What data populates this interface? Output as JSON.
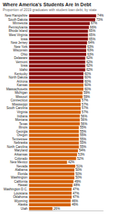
{
  "chart_data": {
    "type": "bar",
    "orientation": "horizontal",
    "title": "Where America's Students Are In Debt",
    "subtitle": "Proportion of 2019 graduates with student loan debt, by state",
    "categories": [
      "New Hampshire",
      "South Dakota",
      "Minnesota",
      "Pennsylvania",
      "Rhode Island",
      "West Virginia",
      "Iowa",
      "New Jersey",
      "New York",
      "Wisconsin",
      "Ohio",
      "Delaware",
      "Vermont",
      "Iowa",
      "Idaho",
      "Kentucky",
      "North Dakota",
      "Arizona",
      "Kansas",
      "Massachusetts",
      "Michigan",
      "Missouri",
      "Connecticut",
      "Mississippi",
      "South Carolina",
      "Virginia",
      "Indiana",
      "Montana",
      "Texas",
      "Illinois",
      "Georgia",
      "Oregon",
      "Tennessee",
      "Nebraska",
      "North Carolina",
      "Maryland",
      "Arkansas",
      "Colorado",
      "New Mexico",
      "Nevada",
      "Alabama",
      "Florida",
      "Washington",
      "California",
      "Hawaii",
      "Washington D.C.",
      "Louisiana",
      "Oklahoma",
      "Wyoming",
      "Alaska",
      "Utah"
    ],
    "values": [
      74,
      73,
      67,
      66,
      65,
      65,
      65,
      64,
      63,
      63,
      63,
      62,
      62,
      62,
      62,
      60,
      60,
      60,
      60,
      60,
      59,
      59,
      57,
      57,
      57,
      57,
      56,
      56,
      56,
      55,
      55,
      55,
      55,
      55,
      55,
      54,
      53,
      52,
      42,
      51,
      50,
      50,
      50,
      49,
      48,
      47,
      47,
      47,
      46,
      46,
      26
    ],
    "value_labels": [
      "74%",
      "73%",
      "67%",
      "66%",
      "65%",
      "65%",
      "65%",
      "64%",
      "63%",
      "63%",
      "63%",
      "62%",
      "62%",
      "62%",
      "62%",
      "60%",
      "60%",
      "60%",
      "60%",
      "60%",
      "59%",
      "59%",
      "57%",
      "57%",
      "57%",
      "57%",
      "56%",
      "56%",
      "56%",
      "55%",
      "55%",
      "55%",
      "55%",
      "55%",
      "55%",
      "54%",
      "53%",
      "52%",
      "42%",
      "51%",
      "50%",
      "50%",
      "50%",
      "49%",
      "48%",
      "47%",
      "47%",
      "47%",
      "46%",
      "46%",
      "26%"
    ],
    "colors": [
      "#8B1010",
      "#8B1010",
      "#8B1010",
      "#8B1010",
      "#8B1010",
      "#8B1010",
      "#8B1010",
      "#8B1010",
      "#8B1010",
      "#8B1010",
      "#8B1010",
      "#8B1010",
      "#8B1010",
      "#8B1010",
      "#8B1010",
      "#8B1010",
      "#8B1010",
      "#8B1010",
      "#D45E00",
      "#D45E00",
      "#D45E00",
      "#D45E00",
      "#D45E00",
      "#D45E00",
      "#D45E00",
      "#D45E00",
      "#D45E00",
      "#D45E00",
      "#D45E00",
      "#D45E00",
      "#D45E00",
      "#D45E00",
      "#D45E00",
      "#D45E00",
      "#D45E00",
      "#D45E00",
      "#D45E00",
      "#D45E00",
      "#D45E00",
      "#D45E00",
      "#D45E00",
      "#D45E00",
      "#D45E00",
      "#D45E00",
      "#D45E00",
      "#D45E00",
      "#D45E00",
      "#D45E00",
      "#D45E00",
      "#D45E00",
      "#D45E00"
    ],
    "xlim": [
      0,
      82
    ],
    "xticks": [],
    "data_labels": true,
    "tick_labels": "y",
    "grid": false
  }
}
